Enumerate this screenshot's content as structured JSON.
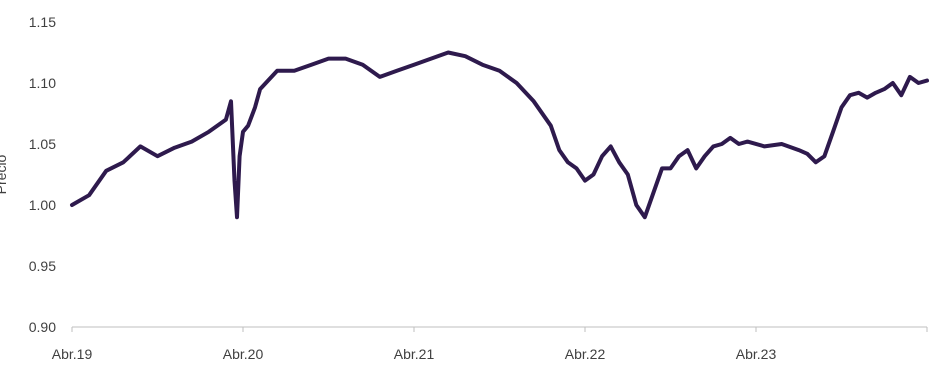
{
  "chart_data": {
    "type": "line",
    "title": "",
    "xlabel": "",
    "ylabel": "Precio",
    "ylim": [
      0.9,
      1.15
    ],
    "yticks": [
      "0.90",
      "0.95",
      "1.00",
      "1.05",
      "1.10",
      "1.15"
    ],
    "xticks": [
      "Abr.19",
      "Abr.20",
      "Abr.21",
      "Abr.22",
      "Abr.23"
    ],
    "grid": false,
    "legend": "none",
    "colors": {
      "line": "#2e1a4d",
      "axis": "#bfbfbf",
      "text": "#404040"
    },
    "series": [
      {
        "x": [
          2019.25,
          2019.35,
          2019.45,
          2019.55,
          2019.65,
          2019.75,
          2019.85,
          2019.95,
          2020.05,
          2020.15,
          2020.18,
          2020.2,
          2020.215,
          2020.23,
          2020.25,
          2020.28,
          2020.32,
          2020.35,
          2020.45,
          2020.55,
          2020.65,
          2020.75,
          2020.85,
          2020.95,
          2021.05,
          2021.15,
          2021.25,
          2021.35,
          2021.45,
          2021.55,
          2021.65,
          2021.75,
          2021.85,
          2021.95,
          2022.05,
          2022.1,
          2022.15,
          2022.2,
          2022.25,
          2022.3,
          2022.35,
          2022.4,
          2022.45,
          2022.5,
          2022.55,
          2022.6,
          2022.65,
          2022.7,
          2022.75,
          2022.8,
          2022.85,
          2022.9,
          2022.95,
          2023.0,
          2023.05,
          2023.1,
          2023.15,
          2023.2,
          2023.3,
          2023.4,
          2023.5,
          2023.55,
          2023.6,
          2023.65,
          2023.7,
          2023.75,
          2023.8,
          2023.85,
          2023.9,
          2023.95,
          2024.0,
          2024.05,
          2024.1,
          2024.15,
          2024.2,
          2024.25
        ],
        "y": [
          1.0,
          1.008,
          1.028,
          1.035,
          1.048,
          1.04,
          1.047,
          1.052,
          1.06,
          1.07,
          1.085,
          1.02,
          0.99,
          1.04,
          1.06,
          1.065,
          1.08,
          1.095,
          1.11,
          1.11,
          1.115,
          1.12,
          1.12,
          1.115,
          1.105,
          1.11,
          1.115,
          1.12,
          1.125,
          1.122,
          1.115,
          1.11,
          1.1,
          1.085,
          1.065,
          1.045,
          1.035,
          1.03,
          1.02,
          1.025,
          1.04,
          1.048,
          1.035,
          1.025,
          1.0,
          0.99,
          1.01,
          1.03,
          1.03,
          1.04,
          1.045,
          1.03,
          1.04,
          1.048,
          1.05,
          1.055,
          1.05,
          1.052,
          1.048,
          1.05,
          1.045,
          1.042,
          1.035,
          1.04,
          1.06,
          1.08,
          1.09,
          1.092,
          1.088,
          1.092,
          1.095,
          1.1,
          1.09,
          1.105,
          1.1,
          1.102
        ]
      }
    ]
  }
}
